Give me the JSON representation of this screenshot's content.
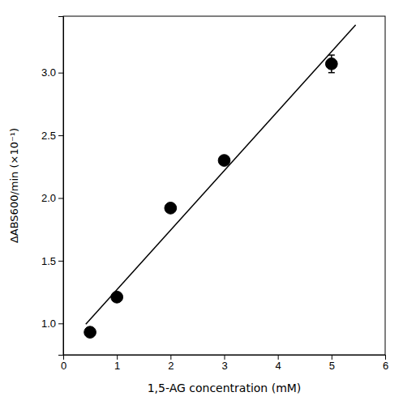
{
  "chart_data": {
    "type": "scatter",
    "xlabel": "1,5-AG concentration (mM)",
    "ylabel": "ΔABS600/min (×10⁻¹)",
    "xlim": [
      0,
      6
    ],
    "ylim": [
      0.75,
      3.45
    ],
    "xticks": [
      0,
      1,
      2,
      3,
      4,
      5,
      6
    ],
    "yticks": [
      {
        "value": 1.0,
        "label": "1.0"
      },
      1.5,
      {
        "value": 2.0,
        "label": "2.0"
      },
      2.5,
      {
        "value": 3.0,
        "label": "3.0"
      }
    ],
    "series": [
      {
        "type": "line",
        "color": "black",
        "x": [
          0.42,
          5.45
        ],
        "values": [
          0.9935875,
          3.381265625
        ]
      },
      {
        "type": "scatter",
        "color": "black",
        "marker": "circle",
        "x": [
          0.5,
          1.0,
          2.0,
          3.0,
          5.0
        ],
        "values": [
          0.93,
          1.21,
          1.92,
          2.3,
          3.07
        ],
        "errors": [
          0.0,
          0.0,
          0.0,
          0.0,
          0.07
        ]
      }
    ]
  }
}
